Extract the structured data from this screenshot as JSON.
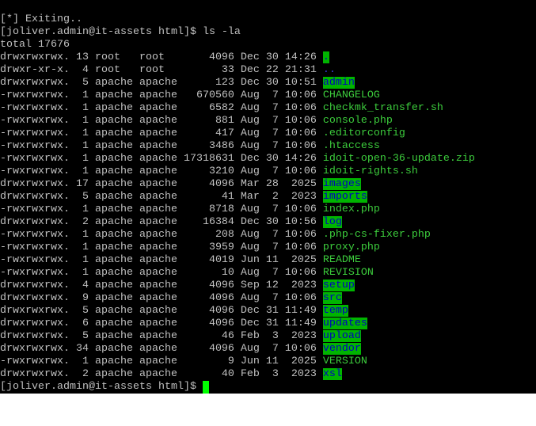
{
  "terminal": {
    "colors": {
      "background": "#000000",
      "text": "#c0c0c0",
      "file": "#3ccc3c",
      "dir_bg": "#00b400",
      "dir_text": "#0000c0",
      "cursor": "#00ff00"
    },
    "pre_lines": [
      "[*] Exiting..",
      "[joliver.admin@it-assets html]$ ls -la",
      "total 17676"
    ],
    "entries": [
      {
        "meta": "drwxrwxrwx. 13 root   root       4096 Dec 30 14:26 ",
        "name": ".",
        "type": "dir"
      },
      {
        "meta": "drwxr-xr-x.  4 root   root         33 Dec 22 21:31 ",
        "name": "..",
        "type": "link"
      },
      {
        "meta": "drwxrwxrwx.  5 apache apache      123 Dec 30 10:51 ",
        "name": "admin",
        "type": "dir"
      },
      {
        "meta": "-rwxrwxrwx.  1 apache apache   670560 Aug  7 10:06 ",
        "name": "CHANGELOG",
        "type": "file"
      },
      {
        "meta": "-rwxrwxrwx.  1 apache apache     6582 Aug  7 10:06 ",
        "name": "checkmk_transfer.sh",
        "type": "file"
      },
      {
        "meta": "-rwxrwxrwx.  1 apache apache      881 Aug  7 10:06 ",
        "name": "console.php",
        "type": "file"
      },
      {
        "meta": "-rwxrwxrwx.  1 apache apache      417 Aug  7 10:06 ",
        "name": ".editorconfig",
        "type": "file"
      },
      {
        "meta": "-rwxrwxrwx.  1 apache apache     3486 Aug  7 10:06 ",
        "name": ".htaccess",
        "type": "file"
      },
      {
        "meta": "-rwxrwxrwx.  1 apache apache 17318631 Dec 30 14:26 ",
        "name": "idoit-open-36-update.zip",
        "type": "file"
      },
      {
        "meta": "-rwxrwxrwx.  1 apache apache     3210 Aug  7 10:06 ",
        "name": "idoit-rights.sh",
        "type": "file"
      },
      {
        "meta": "drwxrwxrwx. 17 apache apache     4096 Mar 28  2025 ",
        "name": "images",
        "type": "dir"
      },
      {
        "meta": "drwxrwxrwx.  5 apache apache       41 Mar  2  2023 ",
        "name": "imports",
        "type": "dir"
      },
      {
        "meta": "-rwxrwxrwx.  1 apache apache     8718 Aug  7 10:06 ",
        "name": "index.php",
        "type": "file"
      },
      {
        "meta": "drwxrwxrwx.  2 apache apache    16384 Dec 30 10:56 ",
        "name": "log",
        "type": "dir"
      },
      {
        "meta": "-rwxrwxrwx.  1 apache apache      208 Aug  7 10:06 ",
        "name": ".php-cs-fixer.php",
        "type": "file"
      },
      {
        "meta": "-rwxrwxrwx.  1 apache apache     3959 Aug  7 10:06 ",
        "name": "proxy.php",
        "type": "file"
      },
      {
        "meta": "-rwxrwxrwx.  1 apache apache     4019 Jun 11  2025 ",
        "name": "README",
        "type": "file"
      },
      {
        "meta": "-rwxrwxrwx.  1 apache apache       10 Aug  7 10:06 ",
        "name": "REVISION",
        "type": "file"
      },
      {
        "meta": "drwxrwxrwx.  4 apache apache     4096 Sep 12  2023 ",
        "name": "setup",
        "type": "dir"
      },
      {
        "meta": "drwxrwxrwx.  9 apache apache     4096 Aug  7 10:06 ",
        "name": "src",
        "type": "dir"
      },
      {
        "meta": "drwxrwxrwx.  5 apache apache     4096 Dec 31 11:49 ",
        "name": "temp",
        "type": "dir"
      },
      {
        "meta": "drwxrwxrwx.  6 apache apache     4096 Dec 31 11:49 ",
        "name": "updates",
        "type": "dir"
      },
      {
        "meta": "drwxrwxrwx.  5 apache apache       46 Feb  3  2023 ",
        "name": "upload",
        "type": "dir"
      },
      {
        "meta": "drwxrwxrwx. 34 apache apache     4096 Aug  7 10:06 ",
        "name": "vendor",
        "type": "dir"
      },
      {
        "meta": "-rwxrwxrwx.  1 apache apache        9 Jun 11  2025 ",
        "name": "VERSION",
        "type": "file"
      },
      {
        "meta": "drwxrwxrwx.  2 apache apache       40 Feb  3  2023 ",
        "name": "xsl",
        "type": "dir"
      }
    ],
    "prompt": "[joliver.admin@it-assets html]$ "
  }
}
